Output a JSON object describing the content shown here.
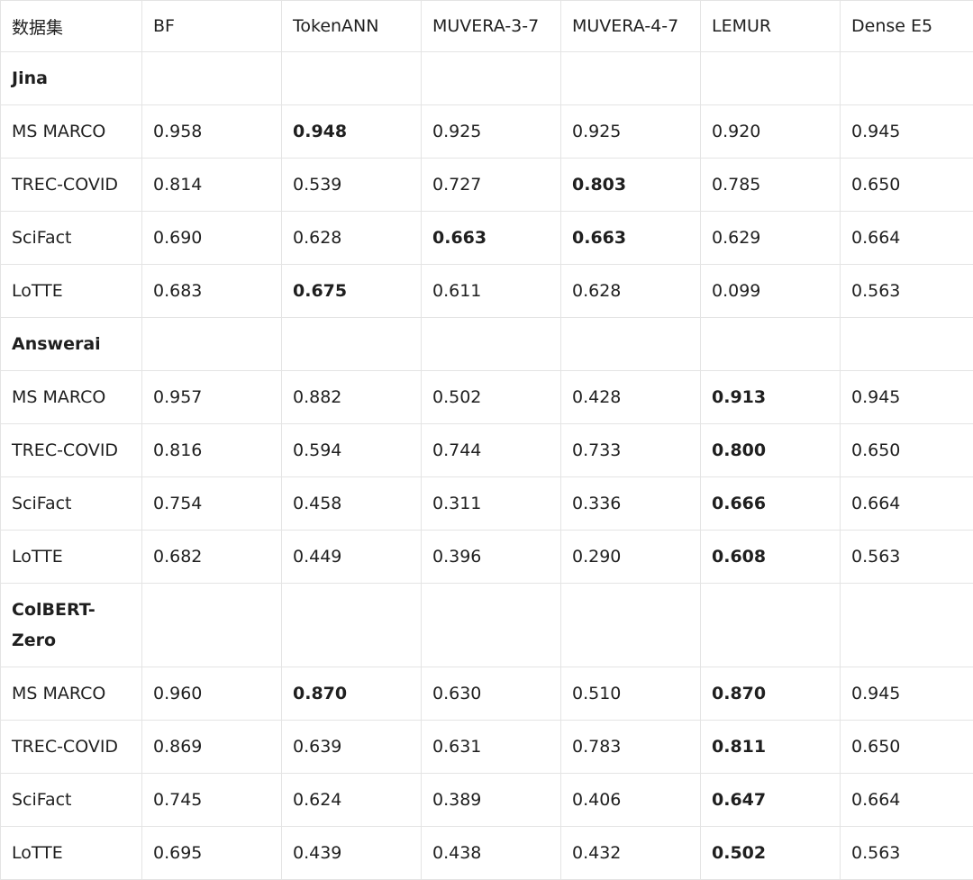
{
  "table": {
    "headers": [
      "数据集",
      "BF",
      "TokenANN",
      "MUVERA-3-7",
      "MUVERA-4-7",
      "LEMUR",
      "Dense E5"
    ],
    "groups": [
      {
        "name": "Jina",
        "rows": [
          {
            "dataset": "MS MARCO",
            "values": [
              "0.958",
              "0.948",
              "0.925",
              "0.925",
              "0.920",
              "0.945"
            ],
            "bold": [
              1
            ]
          },
          {
            "dataset": "TREC-COVID",
            "values": [
              "0.814",
              "0.539",
              "0.727",
              "0.803",
              "0.785",
              "0.650"
            ],
            "bold": [
              3
            ]
          },
          {
            "dataset": "SciFact",
            "values": [
              "0.690",
              "0.628",
              "0.663",
              "0.663",
              "0.629",
              "0.664"
            ],
            "bold": [
              2,
              3
            ]
          },
          {
            "dataset": "LoTTE",
            "values": [
              "0.683",
              "0.675",
              "0.611",
              "0.628",
              "0.099",
              "0.563"
            ],
            "bold": [
              1
            ]
          }
        ]
      },
      {
        "name": "Answerai",
        "rows": [
          {
            "dataset": "MS MARCO",
            "values": [
              "0.957",
              "0.882",
              "0.502",
              "0.428",
              "0.913",
              "0.945"
            ],
            "bold": [
              4
            ]
          },
          {
            "dataset": "TREC-COVID",
            "values": [
              "0.816",
              "0.594",
              "0.744",
              "0.733",
              "0.800",
              "0.650"
            ],
            "bold": [
              4
            ]
          },
          {
            "dataset": "SciFact",
            "values": [
              "0.754",
              "0.458",
              "0.311",
              "0.336",
              "0.666",
              "0.664"
            ],
            "bold": [
              4
            ]
          },
          {
            "dataset": "LoTTE",
            "values": [
              "0.682",
              "0.449",
              "0.396",
              "0.290",
              "0.608",
              "0.563"
            ],
            "bold": [
              4
            ]
          }
        ]
      },
      {
        "name": "ColBERT-Zero",
        "rows": [
          {
            "dataset": "MS MARCO",
            "values": [
              "0.960",
              "0.870",
              "0.630",
              "0.510",
              "0.870",
              "0.945"
            ],
            "bold": [
              1,
              4
            ]
          },
          {
            "dataset": "TREC-COVID",
            "values": [
              "0.869",
              "0.639",
              "0.631",
              "0.783",
              "0.811",
              "0.650"
            ],
            "bold": [
              4
            ]
          },
          {
            "dataset": "SciFact",
            "values": [
              "0.745",
              "0.624",
              "0.389",
              "0.406",
              "0.647",
              "0.664"
            ],
            "bold": [
              4
            ]
          },
          {
            "dataset": "LoTTE",
            "values": [
              "0.695",
              "0.439",
              "0.438",
              "0.432",
              "0.502",
              "0.563"
            ],
            "bold": [
              4
            ]
          }
        ]
      }
    ]
  }
}
